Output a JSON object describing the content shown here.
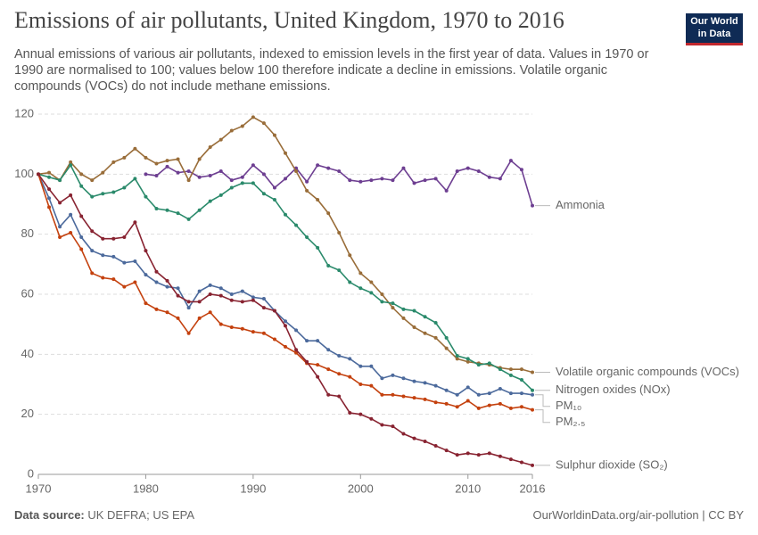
{
  "chart_data": {
    "type": "line",
    "title": "Emissions of air pollutants, United Kingdom, 1970 to 2016",
    "subtitle": "Annual emissions of various air pollutants, indexed to emission levels in the first year of data. Values in 1970 or 1990 are normalised to 100; values below 100 therefore indicate a decline in emissions. Volatile organic compounds (VOCs) do not include methane emissions.",
    "logo": "Our World in Data",
    "source_label": "Data source:",
    "source": "UK DEFRA; US EPA",
    "footer_right": "OurWorldinData.org/air-pollution | CC BY",
    "x": [
      1970,
      1971,
      1972,
      1973,
      1974,
      1975,
      1976,
      1977,
      1978,
      1979,
      1980,
      1981,
      1982,
      1983,
      1984,
      1985,
      1986,
      1987,
      1988,
      1989,
      1990,
      1991,
      1992,
      1993,
      1994,
      1995,
      1996,
      1997,
      1998,
      1999,
      2000,
      2001,
      2002,
      2003,
      2004,
      2005,
      2006,
      2007,
      2008,
      2009,
      2010,
      2011,
      2012,
      2013,
      2014,
      2015,
      2016
    ],
    "xlim": [
      1970,
      2016
    ],
    "xticks": [
      1970,
      1980,
      1990,
      2000,
      2010,
      2016
    ],
    "ylim": [
      0,
      120
    ],
    "yticks": [
      0,
      20,
      40,
      60,
      80,
      100,
      120
    ],
    "grid": true,
    "series": [
      {
        "name": "Ammonia",
        "color": "#6d3e91",
        "values": [
          null,
          null,
          null,
          null,
          null,
          null,
          null,
          null,
          null,
          null,
          100,
          99.5,
          102.5,
          100.5,
          101,
          99,
          99.5,
          101,
          98,
          99,
          103,
          100,
          95.5,
          98.5,
          102,
          97.5,
          103,
          102,
          101,
          98,
          97.5,
          98,
          98.5,
          98,
          102,
          97,
          98,
          98.5,
          94.5,
          101,
          102,
          101,
          99,
          98.5,
          104.5,
          101.5,
          89.5
        ]
      },
      {
        "name": "Volatile organic compounds (VOCs)",
        "color": "#996d39",
        "values": [
          100,
          100.5,
          98,
          104,
          100,
          98,
          100.5,
          104,
          105.5,
          108.5,
          105.5,
          103.5,
          104.5,
          105,
          98,
          105,
          109,
          111.5,
          114.5,
          116,
          119,
          117,
          113,
          107,
          101,
          94.5,
          91.5,
          87,
          80.5,
          73,
          67,
          64,
          60,
          55.5,
          52,
          49,
          47,
          45.5,
          42,
          38.5,
          37.5,
          37,
          36.5,
          35.5,
          35,
          35,
          34
        ]
      },
      {
        "name": "Nitrogen oxides (NOx)",
        "color": "#2a8a6b",
        "values": [
          100,
          99,
          98,
          103,
          96,
          92.5,
          93.5,
          94,
          95.5,
          98.5,
          92.5,
          88.5,
          88,
          87,
          85,
          88,
          91,
          93,
          95.5,
          97,
          97,
          93.5,
          91.5,
          86.5,
          83,
          79,
          75.5,
          69.5,
          68,
          64,
          62,
          60.5,
          57.5,
          57,
          55,
          54.5,
          52.5,
          50.5,
          45.5,
          39.5,
          38.5,
          36.5,
          37,
          35,
          33,
          31.5,
          28
        ]
      },
      {
        "name": "PM₁₀",
        "color": "#4c6a9c",
        "values": [
          100,
          92,
          82.5,
          86.5,
          79,
          74.5,
          73,
          72.5,
          70.5,
          71,
          66.5,
          64,
          62.5,
          62,
          55.5,
          61,
          63,
          62,
          60,
          61,
          59,
          58.5,
          54.5,
          51,
          48,
          44.5,
          44.5,
          41.5,
          39.5,
          38.5,
          36,
          36,
          32,
          33,
          32,
          31,
          30.5,
          29.5,
          28,
          26.5,
          29,
          26.5,
          27,
          28.5,
          27,
          27,
          26.5
        ]
      },
      {
        "name": "PM₂.₅",
        "color": "#c4410e",
        "values": [
          100,
          89,
          79,
          80.5,
          75,
          67,
          65.5,
          65,
          62.5,
          64,
          57,
          55,
          54,
          52,
          47,
          52,
          54,
          50,
          49,
          48.5,
          47.5,
          47,
          45,
          42.5,
          40.5,
          37,
          36.5,
          35,
          33.5,
          32.5,
          30,
          29.5,
          26.5,
          26.5,
          26,
          25.5,
          25,
          24,
          23.5,
          22.5,
          24.5,
          22,
          23,
          23.5,
          22,
          22.5,
          21.5
        ]
      },
      {
        "name": "Sulphur dioxide (SO₂)",
        "color": "#882331",
        "values": [
          100,
          95,
          90.5,
          93,
          86,
          81,
          78.5,
          78.5,
          79,
          84,
          74.5,
          67.5,
          64.5,
          59.5,
          57.5,
          57.5,
          60,
          59.5,
          58,
          57.5,
          58,
          55.5,
          54.5,
          49.5,
          41.5,
          37.5,
          32.5,
          26.5,
          26,
          20.5,
          20,
          18.5,
          16.5,
          16,
          13.5,
          12,
          11,
          9.5,
          8,
          6.5,
          7,
          6.5,
          7,
          6,
          5,
          4,
          3
        ]
      }
    ]
  }
}
